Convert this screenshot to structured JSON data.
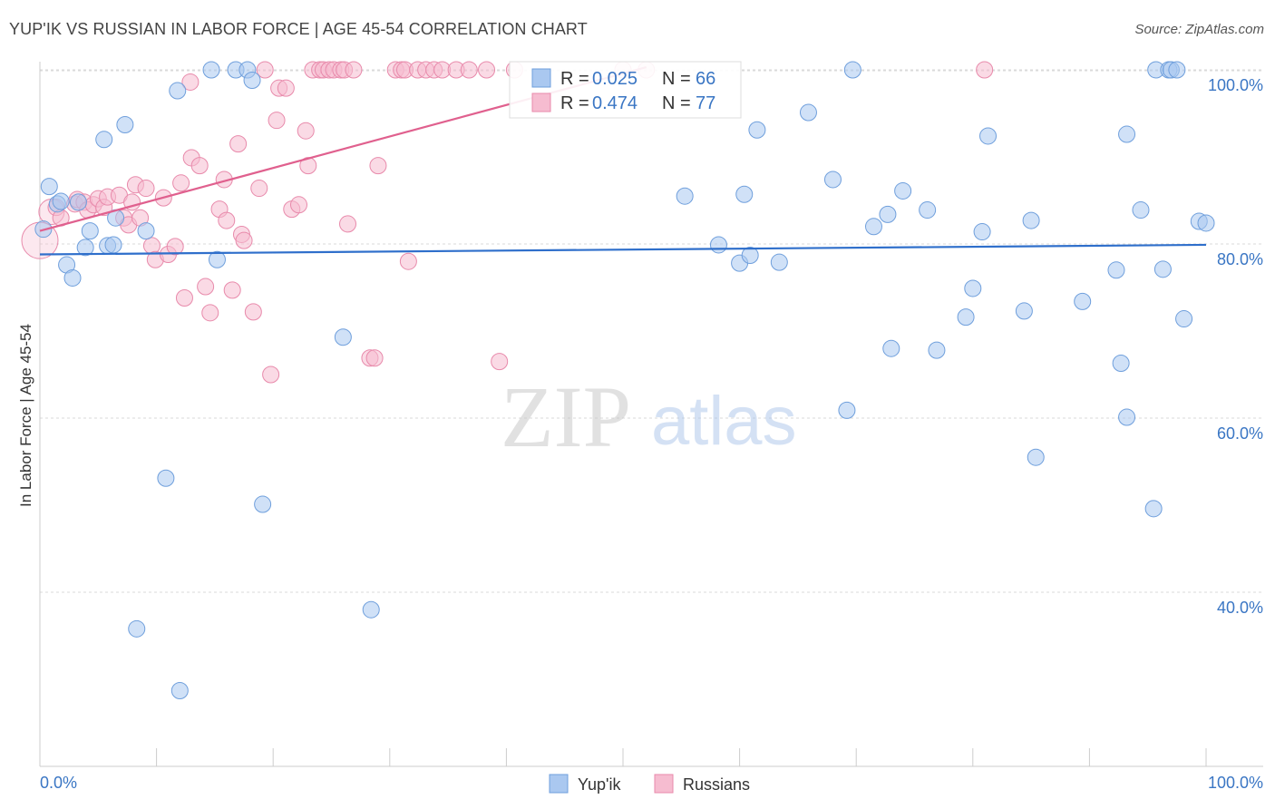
{
  "title": "YUP'IK VS RUSSIAN IN LABOR FORCE | AGE 45-54 CORRELATION CHART",
  "source": "Source: ZipAtlas.com",
  "watermark": {
    "zip": "ZIP",
    "atlas": "atlas"
  },
  "colors": {
    "blue_fill": "#aac8f0",
    "blue_stroke": "#6f9fdc",
    "blue_line": "#2f6fcb",
    "pink_fill": "#f6bcd0",
    "pink_stroke": "#e88aab",
    "pink_line": "#e0608e",
    "grid": "#d9d9d9",
    "value_text": "#3a76c4"
  },
  "chart_data": {
    "type": "scatter",
    "title": "YUP'IK VS RUSSIAN IN LABOR FORCE | AGE 45-54 CORRELATION CHART",
    "xlabel": "",
    "ylabel": "In Labor Force | Age 45-54",
    "xlim": [
      0,
      100
    ],
    "ylim": [
      20,
      102
    ],
    "x_tick_labels": [
      "0.0%",
      "100.0%"
    ],
    "y_ticks": [
      40,
      60,
      80,
      100
    ],
    "y_tick_labels": [
      "40.0%",
      "60.0%",
      "80.0%",
      "100.0%"
    ],
    "legend": [
      {
        "name": "Yup'ik",
        "r_label": "R =",
        "r_value": "0.025",
        "n_label": "N =",
        "n_value": "66"
      },
      {
        "name": "Russians",
        "r_label": "R =",
        "r_value": "0.474",
        "n_label": "N =",
        "n_value": "77"
      }
    ],
    "series": [
      {
        "name": "Yup'ik",
        "trend": {
          "x": [
            0,
            100
          ],
          "y": [
            78.8,
            79.9
          ]
        },
        "points": [
          {
            "x": 0.3,
            "y": 81.7
          },
          {
            "x": 0.8,
            "y": 86.6
          },
          {
            "x": 1.5,
            "y": 84.6
          },
          {
            "x": 1.8,
            "y": 84.9
          },
          {
            "x": 2.3,
            "y": 77.6
          },
          {
            "x": 2.8,
            "y": 76.1
          },
          {
            "x": 3.3,
            "y": 84.8
          },
          {
            "x": 3.9,
            "y": 79.6
          },
          {
            "x": 4.3,
            "y": 81.5
          },
          {
            "x": 5.5,
            "y": 92.0
          },
          {
            "x": 5.8,
            "y": 79.8
          },
          {
            "x": 6.3,
            "y": 79.9
          },
          {
            "x": 6.5,
            "y": 83.0
          },
          {
            "x": 7.3,
            "y": 93.7
          },
          {
            "x": 8.3,
            "y": 35.8
          },
          {
            "x": 9.1,
            "y": 81.5
          },
          {
            "x": 10.8,
            "y": 53.1
          },
          {
            "x": 11.8,
            "y": 97.6
          },
          {
            "x": 12.0,
            "y": 28.7
          },
          {
            "x": 14.7,
            "y": 100.0
          },
          {
            "x": 15.2,
            "y": 78.2
          },
          {
            "x": 16.8,
            "y": 100.0
          },
          {
            "x": 17.8,
            "y": 100.0
          },
          {
            "x": 18.2,
            "y": 98.8
          },
          {
            "x": 19.1,
            "y": 50.1
          },
          {
            "x": 26.0,
            "y": 69.3
          },
          {
            "x": 28.4,
            "y": 38.0
          },
          {
            "x": 55.3,
            "y": 85.5
          },
          {
            "x": 58.2,
            "y": 79.9
          },
          {
            "x": 60.0,
            "y": 77.8
          },
          {
            "x": 60.4,
            "y": 85.7
          },
          {
            "x": 60.9,
            "y": 78.7
          },
          {
            "x": 61.5,
            "y": 93.1
          },
          {
            "x": 63.4,
            "y": 77.9
          },
          {
            "x": 65.9,
            "y": 95.1
          },
          {
            "x": 68.0,
            "y": 87.4
          },
          {
            "x": 69.2,
            "y": 60.9
          },
          {
            "x": 69.7,
            "y": 100.0
          },
          {
            "x": 71.5,
            "y": 82.0
          },
          {
            "x": 72.7,
            "y": 83.4
          },
          {
            "x": 73.0,
            "y": 68.0
          },
          {
            "x": 74.0,
            "y": 86.1
          },
          {
            "x": 76.1,
            "y": 83.9
          },
          {
            "x": 76.9,
            "y": 67.8
          },
          {
            "x": 79.4,
            "y": 71.6
          },
          {
            "x": 80.0,
            "y": 74.9
          },
          {
            "x": 80.8,
            "y": 81.4
          },
          {
            "x": 81.3,
            "y": 92.4
          },
          {
            "x": 84.4,
            "y": 72.3
          },
          {
            "x": 85.0,
            "y": 82.7
          },
          {
            "x": 85.4,
            "y": 55.5
          },
          {
            "x": 89.4,
            "y": 73.4
          },
          {
            "x": 92.3,
            "y": 77.0
          },
          {
            "x": 92.7,
            "y": 66.3
          },
          {
            "x": 93.2,
            "y": 60.1
          },
          {
            "x": 93.2,
            "y": 92.6
          },
          {
            "x": 94.4,
            "y": 83.9
          },
          {
            "x": 95.5,
            "y": 49.6
          },
          {
            "x": 95.7,
            "y": 100.0
          },
          {
            "x": 96.3,
            "y": 77.1
          },
          {
            "x": 96.8,
            "y": 100.0
          },
          {
            "x": 97.0,
            "y": 100.0
          },
          {
            "x": 97.5,
            "y": 100.0
          },
          {
            "x": 98.1,
            "y": 71.4
          },
          {
            "x": 99.4,
            "y": 82.6
          },
          {
            "x": 100.0,
            "y": 82.4
          }
        ]
      },
      {
        "name": "Russians",
        "trend": {
          "x": [
            0,
            52
          ],
          "y": [
            81.5,
            100.3
          ]
        },
        "points": [
          {
            "x": 0.0,
            "y": 80.4
          },
          {
            "x": 1.0,
            "y": 83.7
          },
          {
            "x": 1.4,
            "y": 84.2
          },
          {
            "x": 1.8,
            "y": 83.0
          },
          {
            "x": 3.0,
            "y": 84.6
          },
          {
            "x": 3.2,
            "y": 85.1
          },
          {
            "x": 3.8,
            "y": 84.8
          },
          {
            "x": 4.1,
            "y": 83.9
          },
          {
            "x": 4.6,
            "y": 84.5
          },
          {
            "x": 5.0,
            "y": 85.2
          },
          {
            "x": 5.5,
            "y": 84.2
          },
          {
            "x": 5.8,
            "y": 85.4
          },
          {
            "x": 6.8,
            "y": 85.6
          },
          {
            "x": 7.2,
            "y": 83.0
          },
          {
            "x": 7.6,
            "y": 82.2
          },
          {
            "x": 7.9,
            "y": 84.8
          },
          {
            "x": 8.2,
            "y": 86.8
          },
          {
            "x": 8.6,
            "y": 83.0
          },
          {
            "x": 9.1,
            "y": 86.4
          },
          {
            "x": 9.6,
            "y": 79.8
          },
          {
            "x": 9.9,
            "y": 78.2
          },
          {
            "x": 10.6,
            "y": 85.3
          },
          {
            "x": 11.0,
            "y": 78.8
          },
          {
            "x": 11.6,
            "y": 79.7
          },
          {
            "x": 12.1,
            "y": 87.0
          },
          {
            "x": 12.4,
            "y": 73.8
          },
          {
            "x": 12.9,
            "y": 98.6
          },
          {
            "x": 13.0,
            "y": 89.9
          },
          {
            "x": 13.7,
            "y": 89.0
          },
          {
            "x": 14.2,
            "y": 75.1
          },
          {
            "x": 14.6,
            "y": 72.1
          },
          {
            "x": 15.4,
            "y": 84.0
          },
          {
            "x": 15.8,
            "y": 87.4
          },
          {
            "x": 16.0,
            "y": 82.7
          },
          {
            "x": 16.5,
            "y": 74.7
          },
          {
            "x": 17.0,
            "y": 91.5
          },
          {
            "x": 17.3,
            "y": 81.1
          },
          {
            "x": 17.5,
            "y": 80.4
          },
          {
            "x": 18.3,
            "y": 72.2
          },
          {
            "x": 18.8,
            "y": 86.4
          },
          {
            "x": 19.3,
            "y": 100.0
          },
          {
            "x": 19.8,
            "y": 65.0
          },
          {
            "x": 20.3,
            "y": 94.2
          },
          {
            "x": 20.5,
            "y": 97.9
          },
          {
            "x": 21.1,
            "y": 97.9
          },
          {
            "x": 21.6,
            "y": 84.0
          },
          {
            "x": 22.2,
            "y": 84.5
          },
          {
            "x": 22.8,
            "y": 93.0
          },
          {
            "x": 23.0,
            "y": 89.0
          },
          {
            "x": 23.4,
            "y": 100.0
          },
          {
            "x": 24.0,
            "y": 100.0
          },
          {
            "x": 24.3,
            "y": 100.0
          },
          {
            "x": 24.8,
            "y": 100.0
          },
          {
            "x": 25.2,
            "y": 100.0
          },
          {
            "x": 25.8,
            "y": 100.0
          },
          {
            "x": 26.1,
            "y": 100.0
          },
          {
            "x": 26.4,
            "y": 82.3
          },
          {
            "x": 26.9,
            "y": 100.0
          },
          {
            "x": 28.3,
            "y": 66.9
          },
          {
            "x": 28.7,
            "y": 66.9
          },
          {
            "x": 29.0,
            "y": 89.0
          },
          {
            "x": 30.5,
            "y": 100.0
          },
          {
            "x": 31.0,
            "y": 100.0
          },
          {
            "x": 31.3,
            "y": 100.0
          },
          {
            "x": 31.6,
            "y": 78.0
          },
          {
            "x": 32.4,
            "y": 100.0
          },
          {
            "x": 33.1,
            "y": 100.0
          },
          {
            "x": 33.8,
            "y": 100.0
          },
          {
            "x": 34.5,
            "y": 100.0
          },
          {
            "x": 35.7,
            "y": 100.0
          },
          {
            "x": 36.8,
            "y": 100.0
          },
          {
            "x": 38.3,
            "y": 100.0
          },
          {
            "x": 39.4,
            "y": 66.5
          },
          {
            "x": 40.7,
            "y": 100.0
          },
          {
            "x": 50.0,
            "y": 100.0
          },
          {
            "x": 52.0,
            "y": 100.0
          },
          {
            "x": 81.0,
            "y": 100.0
          }
        ]
      }
    ]
  }
}
